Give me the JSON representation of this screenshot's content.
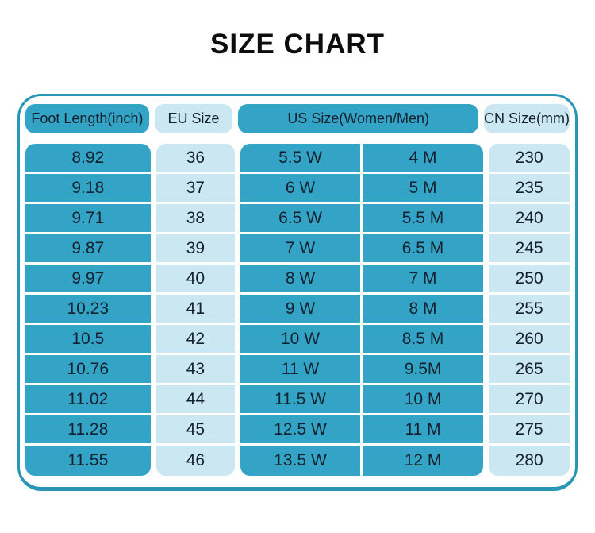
{
  "page": {
    "title": "SIZE CHART"
  },
  "colors": {
    "teal": "#34a4c6",
    "light_blue": "#cbe7f2",
    "border": "#2996b6",
    "text": "#14202d",
    "title": "#0d0d0d"
  },
  "chart_data": {
    "type": "table",
    "title": "SIZE CHART",
    "headers": {
      "foot_length": "Foot Length(inch)",
      "eu_size": "EU Size",
      "us_size": "US Size(Women/Men)",
      "cn_size": "CN Size(mm)"
    },
    "rows": [
      {
        "foot": "8.92",
        "eu": "36",
        "us_w": "5.5 W",
        "us_m": "4 M",
        "cn": "230"
      },
      {
        "foot": "9.18",
        "eu": "37",
        "us_w": "6 W",
        "us_m": "5 M",
        "cn": "235"
      },
      {
        "foot": "9.71",
        "eu": "38",
        "us_w": "6.5 W",
        "us_m": "5.5 M",
        "cn": "240"
      },
      {
        "foot": "9.87",
        "eu": "39",
        "us_w": "7 W",
        "us_m": "6.5 M",
        "cn": "245"
      },
      {
        "foot": "9.97",
        "eu": "40",
        "us_w": "8 W",
        "us_m": "7 M",
        "cn": "250"
      },
      {
        "foot": "10.23",
        "eu": "41",
        "us_w": "9 W",
        "us_m": "8 M",
        "cn": "255"
      },
      {
        "foot": "10.5",
        "eu": "42",
        "us_w": "10 W",
        "us_m": "8.5 M",
        "cn": "260"
      },
      {
        "foot": "10.76",
        "eu": "43",
        "us_w": "11 W",
        "us_m": "9.5M",
        "cn": "265"
      },
      {
        "foot": "11.02",
        "eu": "44",
        "us_w": "11.5 W",
        "us_m": "10 M",
        "cn": "270"
      },
      {
        "foot": "11.28",
        "eu": "45",
        "us_w": "12.5 W",
        "us_m": "11 M",
        "cn": "275"
      },
      {
        "foot": "11.55",
        "eu": "46",
        "us_w": "13.5 W",
        "us_m": "12 M",
        "cn": "280"
      }
    ]
  }
}
